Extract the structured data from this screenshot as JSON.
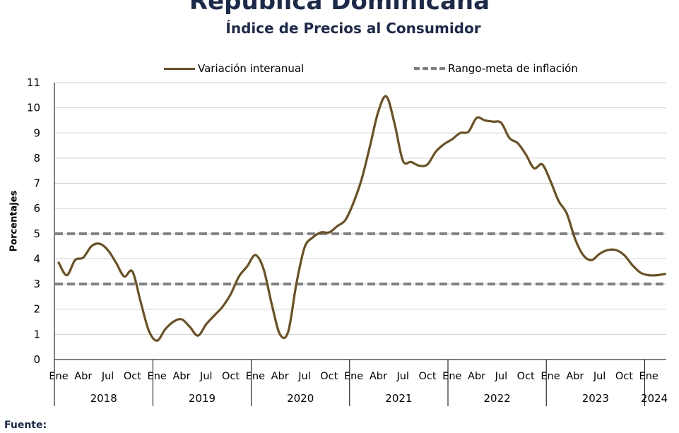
{
  "header": {
    "title": "República Dominicana",
    "subtitle": "Índice de Precios al Consumidor"
  },
  "footer": {
    "source_label": "Fuente:"
  },
  "colors": {
    "series": "#6b5020",
    "target": "#808080",
    "title": "#1b2a4a",
    "grid": "#d0d0d0"
  },
  "chart_data": {
    "type": "line",
    "title": "Índice de Precios al Consumidor",
    "xlabel": "",
    "ylabel": "Porcentajes",
    "ylim": [
      0,
      11
    ],
    "yticks": [
      0,
      1,
      2,
      3,
      4,
      5,
      6,
      7,
      8,
      9,
      10,
      11
    ],
    "grid": "horizontal",
    "legend_position": "top",
    "month_tick_labels": [
      "Ene",
      "Abr",
      "Jul",
      "Oct"
    ],
    "year_labels": [
      "2018",
      "2019",
      "2020",
      "2021",
      "2022",
      "2023",
      "2024"
    ],
    "x": [
      "2018-01",
      "2018-02",
      "2018-03",
      "2018-04",
      "2018-05",
      "2018-06",
      "2018-07",
      "2018-08",
      "2018-09",
      "2018-10",
      "2018-11",
      "2018-12",
      "2019-01",
      "2019-02",
      "2019-03",
      "2019-04",
      "2019-05",
      "2019-06",
      "2019-07",
      "2019-08",
      "2019-09",
      "2019-10",
      "2019-11",
      "2019-12",
      "2020-01",
      "2020-02",
      "2020-03",
      "2020-04",
      "2020-05",
      "2020-06",
      "2020-07",
      "2020-08",
      "2020-09",
      "2020-10",
      "2020-11",
      "2020-12",
      "2021-01",
      "2021-02",
      "2021-03",
      "2021-04",
      "2021-05",
      "2021-06",
      "2021-07",
      "2021-08",
      "2021-09",
      "2021-10",
      "2021-11",
      "2021-12",
      "2022-01",
      "2022-02",
      "2022-03",
      "2022-04",
      "2022-05",
      "2022-06",
      "2022-07",
      "2022-08",
      "2022-09",
      "2022-10",
      "2022-11",
      "2022-12",
      "2023-01",
      "2023-02",
      "2023-03",
      "2023-04",
      "2023-05",
      "2023-06",
      "2023-07",
      "2023-08",
      "2023-09",
      "2023-10",
      "2023-11",
      "2023-12",
      "2024-01",
      "2024-02",
      "2024-03"
    ],
    "series": [
      {
        "name": "Variación interanual",
        "style": "solid",
        "values": [
          3.85,
          3.35,
          3.95,
          4.05,
          4.5,
          4.6,
          4.35,
          3.85,
          3.3,
          3.5,
          2.3,
          1.15,
          0.75,
          1.2,
          1.5,
          1.6,
          1.3,
          0.95,
          1.4,
          1.75,
          2.1,
          2.6,
          3.3,
          3.7,
          4.15,
          3.6,
          2.2,
          1.0,
          1.1,
          3.0,
          4.45,
          4.85,
          5.05,
          5.05,
          5.3,
          5.55,
          6.25,
          7.2,
          8.5,
          9.85,
          10.45,
          9.35,
          7.9,
          7.85,
          7.7,
          7.75,
          8.25,
          8.55,
          8.75,
          9.0,
          9.05,
          9.6,
          9.5,
          9.45,
          9.4,
          8.8,
          8.6,
          8.15,
          7.6,
          7.75,
          7.1,
          6.3,
          5.8,
          4.8,
          4.15,
          3.95,
          4.2,
          4.35,
          4.35,
          4.15,
          3.75,
          3.45,
          3.35,
          3.35,
          3.4
        ]
      },
      {
        "name": "Rango-meta de inflación",
        "style": "dashed",
        "values_upper": 5,
        "values_lower": 3
      }
    ]
  }
}
